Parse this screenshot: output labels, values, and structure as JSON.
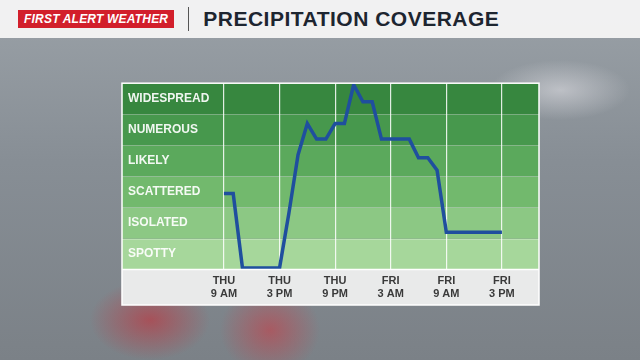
{
  "header": {
    "logo": "FIRST ALERT WEATHER"
  },
  "chart_data": {
    "type": "line",
    "title": "PRECIPITATION COVERAGE",
    "categories": [
      null,
      null,
      null,
      null,
      null,
      null,
      null,
      null,
      null,
      null,
      null,
      "THU 9 AM",
      null,
      null,
      null,
      null,
      null,
      "THU 3 PM",
      null,
      null,
      null,
      null,
      null,
      "THU 9 PM",
      null,
      null,
      null,
      null,
      null,
      "FRI 3 AM",
      null,
      null,
      null,
      null,
      null,
      "FRI 9 AM",
      null,
      null,
      null,
      null,
      null,
      "FRI 3 PM",
      null,
      null,
      null,
      null
    ],
    "values": [
      null,
      null,
      null,
      null,
      null,
      null,
      null,
      null,
      null,
      null,
      null,
      2.45,
      2.45,
      0.05,
      0.05,
      0.05,
      0.05,
      0.05,
      1.8,
      3.7,
      4.7,
      4.2,
      4.2,
      4.7,
      4.7,
      5.95,
      5.4,
      5.4,
      4.2,
      4.2,
      4.2,
      4.2,
      3.6,
      3.6,
      3.2,
      1.2,
      1.2,
      1.2,
      1.2,
      1.2,
      1.2,
      1.2,
      null,
      null,
      null,
      null
    ],
    "color": "#1f4f9e",
    "ylim": [
      0,
      6
    ],
    "yticks": [
      {
        "value": 0.5,
        "label": "SPOTTY"
      },
      {
        "value": 1.5,
        "label": "ISOLATED"
      },
      {
        "value": 2.5,
        "label": "SCATTERED"
      },
      {
        "value": 3.5,
        "label": "LIKELY"
      },
      {
        "value": 4.5,
        "label": "NUMEROUS"
      },
      {
        "value": 5.5,
        "label": "WIDESPREAD"
      }
    ],
    "grid": true
  }
}
